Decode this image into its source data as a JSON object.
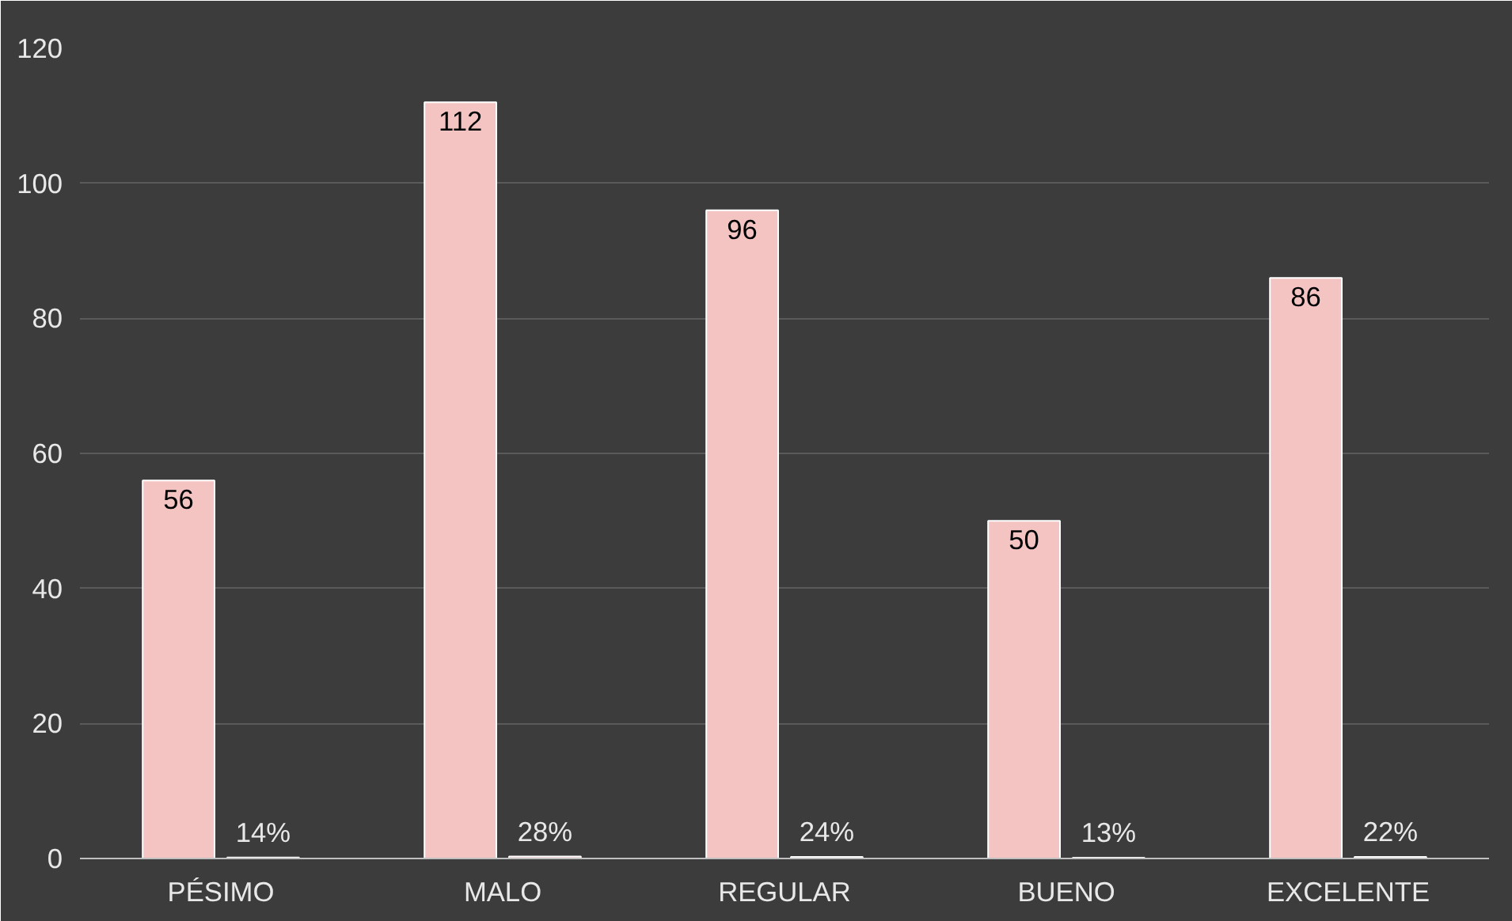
{
  "chart_data": {
    "type": "bar",
    "categories": [
      "PÉSIMO",
      "MALO",
      "REGULAR",
      "BUENO",
      "EXCELENTE"
    ],
    "series": [
      {
        "color": "#f4c4c2",
        "values": [
          56,
          112,
          96,
          50,
          86
        ],
        "value_labels": [
          "56",
          "112",
          "96",
          "50",
          "86"
        ]
      },
      {
        "color": "#f4c4c2",
        "values": [
          0.14,
          0.28,
          0.24,
          0.13,
          0.22
        ],
        "value_labels": [
          "14%",
          "28%",
          "24%",
          "13%",
          "22%"
        ]
      }
    ],
    "ylim": [
      0,
      120
    ],
    "yticks": [
      0,
      20,
      40,
      60,
      80,
      100,
      120
    ],
    "grid": "y"
  }
}
